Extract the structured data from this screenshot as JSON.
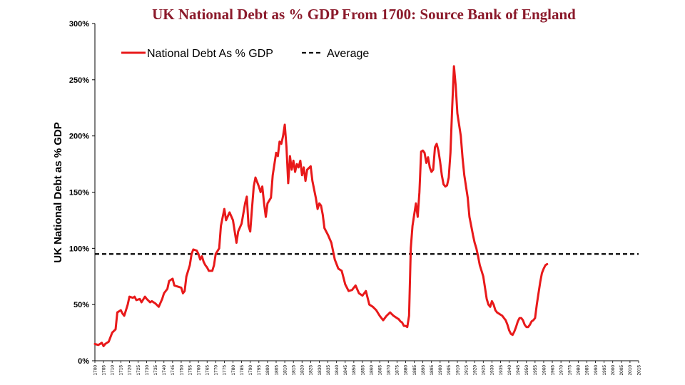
{
  "chart_data": {
    "type": "line",
    "title": "UK National Debt as % GDP From 1700: Source Bank of England",
    "ylabel": "UK National Debt as % GDP",
    "xlabel": "",
    "xlim": [
      1700,
      2015
    ],
    "ylim": [
      0,
      300
    ],
    "yticks": [
      "0%",
      "50%",
      "100%",
      "150%",
      "200%",
      "250%",
      "300%"
    ],
    "ytick_values": [
      0,
      50,
      100,
      150,
      200,
      250,
      300
    ],
    "xticks": [
      "1700",
      "1705",
      "1710",
      "1715",
      "1720",
      "1725",
      "1730",
      "1735",
      "1740",
      "1745",
      "1750",
      "1755",
      "1760",
      "1765",
      "1770",
      "1775",
      "1780",
      "1785",
      "1790",
      "1795",
      "1800",
      "1805",
      "1810",
      "1815",
      "1820",
      "1825",
      "1830",
      "1835",
      "1840",
      "1845",
      "1850",
      "1855",
      "1860",
      "1865",
      "1870",
      "1875",
      "1880",
      "1885",
      "1890",
      "1895",
      "1900",
      "1905",
      "1910",
      "1915",
      "1920",
      "1925",
      "1930",
      "1935",
      "1940",
      "1945",
      "1950",
      "1955",
      "1960",
      "1965",
      "1970",
      "1975",
      "1980",
      "1985",
      "1990",
      "1995",
      "2000",
      "2005",
      "2010",
      "2015"
    ],
    "legend_position": "top-left",
    "series": [
      {
        "name": "National Debt As % GDP",
        "color": "#E8191A",
        "style": "solid",
        "points": [
          [
            1700,
            15
          ],
          [
            1702,
            14
          ],
          [
            1704,
            16
          ],
          [
            1705,
            13
          ],
          [
            1706,
            15
          ],
          [
            1708,
            17
          ],
          [
            1710,
            25
          ],
          [
            1712,
            28
          ],
          [
            1713,
            43
          ],
          [
            1715,
            45
          ],
          [
            1716,
            42
          ],
          [
            1717,
            40
          ],
          [
            1719,
            50
          ],
          [
            1720,
            57
          ],
          [
            1722,
            56
          ],
          [
            1723,
            57
          ],
          [
            1724,
            54
          ],
          [
            1726,
            55
          ],
          [
            1727,
            52
          ],
          [
            1729,
            57
          ],
          [
            1730,
            55
          ],
          [
            1732,
            52
          ],
          [
            1733,
            53
          ],
          [
            1735,
            51
          ],
          [
            1737,
            48
          ],
          [
            1739,
            55
          ],
          [
            1740,
            60
          ],
          [
            1742,
            64
          ],
          [
            1743,
            71
          ],
          [
            1745,
            73
          ],
          [
            1746,
            67
          ],
          [
            1748,
            66
          ],
          [
            1750,
            65
          ],
          [
            1751,
            60
          ],
          [
            1752,
            62
          ],
          [
            1753,
            75
          ],
          [
            1755,
            85
          ],
          [
            1756,
            95
          ],
          [
            1757,
            99
          ],
          [
            1759,
            98
          ],
          [
            1760,
            95
          ],
          [
            1761,
            90
          ],
          [
            1762,
            93
          ],
          [
            1763,
            88
          ],
          [
            1764,
            85
          ],
          [
            1765,
            83
          ],
          [
            1766,
            80
          ],
          [
            1768,
            80
          ],
          [
            1769,
            85
          ],
          [
            1770,
            95
          ],
          [
            1772,
            100
          ],
          [
            1773,
            120
          ],
          [
            1775,
            135
          ],
          [
            1776,
            125
          ],
          [
            1778,
            132
          ],
          [
            1780,
            125
          ],
          [
            1782,
            105
          ],
          [
            1783,
            115
          ],
          [
            1785,
            122
          ],
          [
            1787,
            140
          ],
          [
            1788,
            146
          ],
          [
            1789,
            120
          ],
          [
            1790,
            115
          ],
          [
            1791,
            135
          ],
          [
            1792,
            155
          ],
          [
            1793,
            163
          ],
          [
            1795,
            155
          ],
          [
            1796,
            150
          ],
          [
            1797,
            155
          ],
          [
            1798,
            140
          ],
          [
            1799,
            128
          ],
          [
            1800,
            140
          ],
          [
            1802,
            145
          ],
          [
            1803,
            165
          ],
          [
            1805,
            185
          ],
          [
            1806,
            182
          ],
          [
            1807,
            195
          ],
          [
            1808,
            193
          ],
          [
            1809,
            200
          ],
          [
            1810,
            210
          ],
          [
            1811,
            190
          ],
          [
            1812,
            158
          ],
          [
            1813,
            182
          ],
          [
            1814,
            170
          ],
          [
            1815,
            178
          ],
          [
            1816,
            168
          ],
          [
            1817,
            175
          ],
          [
            1818,
            172
          ],
          [
            1819,
            178
          ],
          [
            1820,
            165
          ],
          [
            1821,
            172
          ],
          [
            1822,
            160
          ],
          [
            1823,
            170
          ],
          [
            1825,
            173
          ],
          [
            1826,
            160
          ],
          [
            1828,
            145
          ],
          [
            1829,
            135
          ],
          [
            1830,
            140
          ],
          [
            1831,
            138
          ],
          [
            1832,
            130
          ],
          [
            1833,
            118
          ],
          [
            1835,
            112
          ],
          [
            1837,
            105
          ],
          [
            1839,
            90
          ],
          [
            1841,
            82
          ],
          [
            1843,
            80
          ],
          [
            1845,
            68
          ],
          [
            1847,
            62
          ],
          [
            1849,
            63
          ],
          [
            1851,
            67
          ],
          [
            1853,
            60
          ],
          [
            1855,
            58
          ],
          [
            1857,
            62
          ],
          [
            1859,
            50
          ],
          [
            1861,
            48
          ],
          [
            1863,
            45
          ],
          [
            1865,
            40
          ],
          [
            1867,
            36
          ],
          [
            1869,
            40
          ],
          [
            1871,
            43
          ],
          [
            1873,
            40
          ],
          [
            1875,
            38
          ],
          [
            1876,
            37
          ],
          [
            1877,
            35
          ],
          [
            1878,
            34
          ],
          [
            1879,
            31
          ],
          [
            1880,
            31
          ],
          [
            1881,
            30
          ],
          [
            1882,
            40
          ],
          [
            1883,
            100
          ],
          [
            1884,
            120
          ],
          [
            1885,
            130
          ],
          [
            1886,
            140
          ],
          [
            1887,
            128
          ],
          [
            1888,
            150
          ],
          [
            1889,
            186
          ],
          [
            1890,
            187
          ],
          [
            1891,
            185
          ],
          [
            1892,
            176
          ],
          [
            1893,
            181
          ],
          [
            1894,
            172
          ],
          [
            1895,
            168
          ],
          [
            1896,
            170
          ],
          [
            1897,
            190
          ],
          [
            1898,
            193
          ],
          [
            1899,
            187
          ],
          [
            1900,
            177
          ],
          [
            1901,
            165
          ],
          [
            1902,
            157
          ],
          [
            1903,
            155
          ],
          [
            1904,
            156
          ],
          [
            1905,
            163
          ],
          [
            1906,
            185
          ],
          [
            1907,
            225
          ],
          [
            1908,
            262
          ],
          [
            1909,
            245
          ],
          [
            1910,
            220
          ],
          [
            1911,
            210
          ],
          [
            1912,
            200
          ],
          [
            1913,
            180
          ],
          [
            1914,
            165
          ],
          [
            1915,
            155
          ],
          [
            1916,
            145
          ],
          [
            1917,
            128
          ],
          [
            1918,
            120
          ],
          [
            1919,
            112
          ],
          [
            1920,
            105
          ],
          [
            1921,
            100
          ],
          [
            1922,
            93
          ],
          [
            1923,
            85
          ],
          [
            1924,
            80
          ],
          [
            1925,
            75
          ],
          [
            1926,
            65
          ],
          [
            1927,
            55
          ],
          [
            1928,
            50
          ],
          [
            1929,
            48
          ],
          [
            1930,
            53
          ],
          [
            1931,
            50
          ],
          [
            1932,
            45
          ],
          [
            1933,
            43
          ],
          [
            1934,
            42
          ],
          [
            1935,
            41
          ],
          [
            1936,
            40
          ],
          [
            1937,
            38
          ],
          [
            1938,
            36
          ],
          [
            1939,
            32
          ],
          [
            1940,
            27
          ],
          [
            1941,
            24
          ],
          [
            1942,
            23
          ],
          [
            1943,
            26
          ],
          [
            1944,
            30
          ],
          [
            1945,
            35
          ],
          [
            1946,
            38
          ],
          [
            1947,
            38
          ],
          [
            1948,
            36
          ],
          [
            1949,
            32
          ],
          [
            1950,
            30
          ],
          [
            1951,
            30
          ],
          [
            1952,
            32
          ],
          [
            1953,
            35
          ],
          [
            1954,
            36
          ],
          [
            1955,
            38
          ],
          [
            1956,
            50
          ],
          [
            1957,
            60
          ],
          [
            1958,
            70
          ],
          [
            1959,
            78
          ],
          [
            1960,
            82
          ],
          [
            1961,
            85
          ],
          [
            1962,
            86
          ]
        ]
      },
      {
        "name": "Average",
        "color": "#000000",
        "style": "dashed",
        "value": 95
      }
    ]
  }
}
